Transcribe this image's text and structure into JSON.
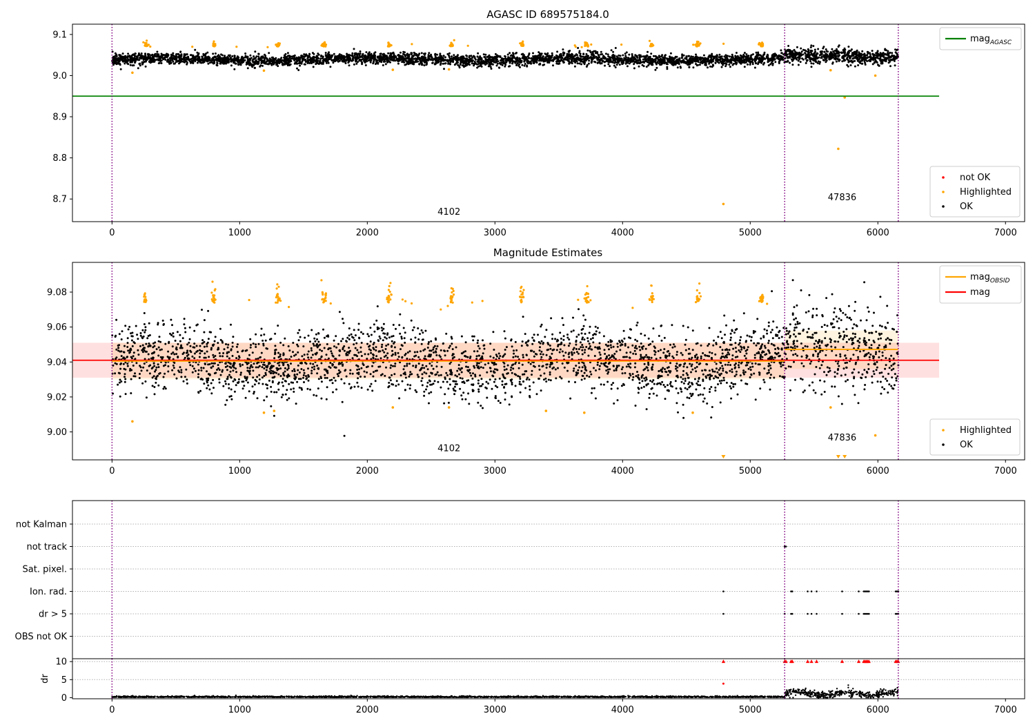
{
  "chart_data": [
    {
      "type": "scatter",
      "title": "AGASC ID 689575184.0",
      "xlim": [
        -310,
        7150
      ],
      "ylim": [
        8.645,
        9.125
      ],
      "xticks": [
        0,
        1000,
        2000,
        3000,
        4000,
        5000,
        6000,
        7000
      ],
      "yticks": [
        8.7,
        8.8,
        8.9,
        9.0,
        9.1
      ],
      "grid": false,
      "legend_upper": {
        "position": "top-right",
        "entries": [
          {
            "label": "mag",
            "sub": "AGASC",
            "color": "#008000"
          }
        ]
      },
      "legend_lower": {
        "position": "bottom-right",
        "entries": [
          {
            "label": "not OK",
            "color": "#ff0000"
          },
          {
            "label": "Highlighted",
            "color": "#ffa500"
          },
          {
            "label": "OK",
            "color": "#000000"
          }
        ]
      },
      "lines": [
        {
          "name": "mag_AGASC",
          "y": 8.95,
          "x": [
            -310,
            6480
          ],
          "color": "#008000"
        }
      ],
      "vlines": [
        0,
        5270,
        6160
      ],
      "annotations": [
        {
          "text": "4102",
          "x": 2640,
          "y": 8.662
        },
        {
          "text": "47836",
          "x": 5720,
          "y": 8.697
        }
      ],
      "series": [
        {
          "name": "OK",
          "color": "#000000",
          "mean": 9.039,
          "spread": 0.007
        },
        {
          "name": "Highlighted",
          "color": "#ffa500",
          "clusters_x": [
            265,
            800,
            1300,
            1660,
            2170,
            2660,
            3210,
            3720,
            4230,
            4590,
            5090
          ],
          "outliers": [
            [
              160,
              9.007
            ],
            [
              1190,
              9.012
            ],
            [
              2200,
              9.014
            ],
            [
              2640,
              9.015
            ],
            [
              4790,
              8.688
            ],
            [
              5630,
              9.013
            ],
            [
              5690,
              8.822
            ],
            [
              5740,
              8.947
            ],
            [
              5980,
              9.0
            ]
          ]
        }
      ]
    },
    {
      "type": "scatter",
      "title": "Magnitude Estimates",
      "xlim": [
        -310,
        7150
      ],
      "ylim": [
        8.984,
        9.097
      ],
      "xticks": [
        0,
        1000,
        2000,
        3000,
        4000,
        5000,
        6000,
        7000
      ],
      "yticks": [
        9.0,
        9.02,
        9.04,
        9.06,
        9.08
      ],
      "grid": false,
      "legend_upper": {
        "position": "top-right",
        "entries": [
          {
            "label": "mag",
            "sub": "OBSID",
            "color": "#ffa500"
          },
          {
            "label": "mag",
            "color": "#ff0000"
          }
        ]
      },
      "legend_lower": {
        "position": "bottom-right",
        "entries": [
          {
            "label": "Highlighted",
            "color": "#ffa500"
          },
          {
            "label": "OK",
            "color": "#000000"
          }
        ]
      },
      "lines": [
        {
          "name": "mag",
          "y": 9.041,
          "x": [
            -310,
            6480
          ],
          "color": "#ff0000",
          "band": [
            9.031,
            9.051
          ]
        },
        {
          "name": "mag_OBSID_1",
          "y": 9.0405,
          "x": [
            0,
            5270
          ],
          "color": "#ffa500",
          "band": [
            9.03,
            9.051
          ]
        },
        {
          "name": "mag_OBSID_2",
          "y": 9.0472,
          "x": [
            5270,
            6160
          ],
          "color": "#ffa500",
          "band": [
            9.036,
            9.058
          ]
        }
      ],
      "vlines": [
        0,
        5270,
        6160
      ],
      "annotations": [
        {
          "text": "4102",
          "x": 2640,
          "y": 8.989
        },
        {
          "text": "47836",
          "x": 5720,
          "y": 8.995
        }
      ],
      "series": [
        {
          "name": "OK",
          "color": "#000000",
          "mean": 9.0405,
          "spread": 0.0095
        },
        {
          "name": "Highlighted",
          "color": "#ffa500",
          "clusters_x": [
            265,
            800,
            1300,
            1660,
            2170,
            2660,
            3210,
            3720,
            4230,
            4590,
            5090
          ],
          "outliers": [
            [
              160,
              9.006
            ],
            [
              1190,
              9.011
            ],
            [
              1270,
              9.012
            ],
            [
              2200,
              9.014
            ],
            [
              2640,
              9.014
            ],
            [
              3400,
              9.012
            ],
            [
              3700,
              9.011
            ],
            [
              4550,
              9.011
            ],
            [
              5630,
              9.014
            ],
            [
              5980,
              8.998
            ]
          ],
          "markers_below_axis_x": [
            4790,
            5690,
            5740
          ]
        }
      ]
    },
    {
      "type": "scatter",
      "title": "",
      "xlim": [
        -310,
        7150
      ],
      "xticks": [
        0,
        1000,
        2000,
        3000,
        4000,
        5000,
        6000,
        7000
      ],
      "categories": [
        "not Kalman",
        "not track",
        "Sat. pixel.",
        "Ion. rad.",
        "dr > 5",
        "OBS not OK"
      ],
      "grid": "horizontal dotted",
      "vlines": [
        0,
        5270,
        6160
      ],
      "flags": {
        "not track": [
          5270,
          5280
        ],
        "Ion. rad.": [
          4790,
          5320,
          5330,
          5450,
          5480,
          5520,
          5720,
          5850,
          5890,
          5900,
          5910,
          5920,
          5930,
          6140,
          6150,
          6160
        ],
        "dr > 5": [
          4790,
          5270,
          5320,
          5330,
          5450,
          5480,
          5520,
          5720,
          5850,
          5890,
          5900,
          5910,
          5920,
          5930,
          6140,
          6150,
          6160
        ]
      }
    },
    {
      "type": "scatter",
      "title": "",
      "ylabel": "dr",
      "xlim": [
        -310,
        7150
      ],
      "ylim": [
        -0.3,
        10.8
      ],
      "yticks": [
        0,
        5,
        10
      ],
      "xticks": [
        0,
        1000,
        2000,
        3000,
        4000,
        5000,
        6000,
        7000
      ],
      "vlines": [
        0,
        5270,
        6160
      ],
      "series": [
        {
          "name": "dr",
          "color": "#000000",
          "ranges": [
            [
              0,
              5270,
              0.1,
              0.15
            ],
            [
              5270,
              6160,
              1.1,
              0.5
            ]
          ]
        },
        {
          "name": "dr clipped",
          "color": "#ff0000",
          "marker": "triangle",
          "x": [
            4790,
            5270,
            5280,
            5320,
            5330,
            5450,
            5480,
            5520,
            5720,
            5850,
            5890,
            5900,
            5910,
            5920,
            5930,
            6140,
            6150,
            6160
          ],
          "y": 10
        },
        {
          "name": "dr outlier",
          "color": "#ff0000",
          "points": [
            [
              4790,
              3.9
            ]
          ]
        }
      ]
    }
  ]
}
